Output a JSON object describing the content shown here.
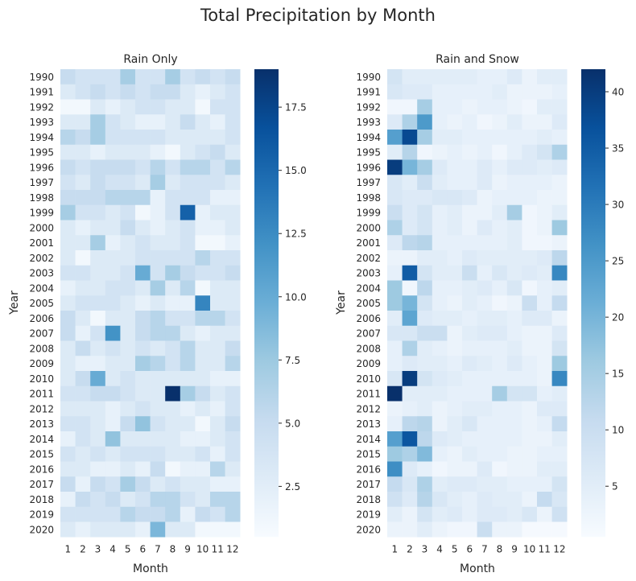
{
  "title": "Total Precipitation by Month",
  "chart_data": [
    {
      "type": "heatmap",
      "title": "Rain Only",
      "xlabel": "Month",
      "ylabel": "Year",
      "x": [
        "1",
        "2",
        "3",
        "4",
        "5",
        "6",
        "7",
        "8",
        "9",
        "10",
        "11",
        "12"
      ],
      "y": [
        "1990",
        "1991",
        "1992",
        "1993",
        "1994",
        "1995",
        "1996",
        "1997",
        "1998",
        "1999",
        "2000",
        "2001",
        "2002",
        "2003",
        "2004",
        "2005",
        "2006",
        "2007",
        "2008",
        "2009",
        "2010",
        "2011",
        "2012",
        "2013",
        "2014",
        "2015",
        "2016",
        "2017",
        "2018",
        "2019",
        "2020"
      ],
      "colorbar_ticks": [
        2.5,
        5.0,
        7.5,
        10.0,
        12.5,
        15.0,
        17.5
      ],
      "colorbar_tick_labels": [
        "2.5",
        "5.0",
        "7.5",
        "10.0",
        "12.5",
        "15.0",
        "17.5"
      ],
      "vmin": 0.5,
      "vmax": 19.0,
      "colormap": "Blues",
      "values": [
        [
          5,
          4,
          4,
          4,
          7,
          4,
          4,
          7,
          4,
          5,
          4,
          5
        ],
        [
          3,
          4,
          5,
          4,
          5,
          4,
          5,
          5,
          3,
          2,
          3,
          4
        ],
        [
          1,
          1,
          3,
          2,
          3,
          4,
          4,
          3,
          3,
          1,
          4,
          4
        ],
        [
          3,
          3,
          7,
          4,
          3,
          2,
          2,
          3,
          5,
          3,
          2,
          4
        ],
        [
          6,
          5,
          7,
          4,
          4,
          4,
          4,
          3,
          3,
          3,
          3,
          4
        ],
        [
          3,
          3,
          2,
          3,
          3,
          3,
          2,
          1,
          3,
          4,
          5,
          3
        ],
        [
          5,
          4,
          5,
          5,
          5,
          4,
          6,
          4,
          6,
          6,
          4,
          6
        ],
        [
          4,
          3,
          5,
          4,
          4,
          3,
          7,
          3,
          4,
          4,
          4,
          3
        ],
        [
          5,
          5,
          5,
          6,
          6,
          6,
          2,
          4,
          4,
          4,
          2,
          2
        ],
        [
          7,
          4,
          4,
          3,
          4,
          1,
          2,
          4,
          15.5,
          2,
          3,
          3
        ],
        [
          3,
          2,
          3,
          3,
          5,
          3,
          2,
          3,
          4,
          2,
          2,
          3
        ],
        [
          3,
          3,
          7,
          2,
          3,
          4,
          3,
          3,
          4,
          1,
          1,
          2
        ],
        [
          3,
          1,
          3,
          3,
          3,
          4,
          4,
          4,
          4,
          6,
          4,
          4
        ],
        [
          4,
          4,
          3,
          3,
          4,
          10,
          4,
          7,
          5,
          4,
          4,
          5
        ],
        [
          2,
          3,
          3,
          4,
          4,
          3,
          7,
          3,
          6,
          1,
          3,
          3
        ],
        [
          3,
          4,
          4,
          4,
          3,
          2,
          3,
          2,
          2,
          13,
          3,
          3
        ],
        [
          5,
          3,
          1,
          3,
          3,
          5,
          6,
          4,
          4,
          6,
          6,
          4
        ],
        [
          5,
          2,
          4,
          12,
          3,
          5,
          6,
          6,
          3,
          2,
          3,
          3
        ],
        [
          3,
          5,
          3,
          4,
          3,
          4,
          3,
          4,
          6,
          3,
          3,
          5
        ],
        [
          3,
          2,
          2,
          3,
          3,
          7,
          6,
          4,
          6,
          3,
          3,
          6
        ],
        [
          3,
          5,
          10,
          3,
          4,
          3,
          3,
          3,
          3,
          3,
          2,
          2
        ],
        [
          4,
          4,
          5,
          5,
          4,
          3,
          3,
          19,
          7,
          5,
          3,
          4
        ],
        [
          3,
          3,
          3,
          2,
          3,
          4,
          3,
          3,
          2,
          3,
          2,
          4
        ],
        [
          4,
          4,
          3,
          2,
          5,
          8,
          4,
          3,
          3,
          1,
          3,
          5
        ],
        [
          2,
          4,
          3,
          8,
          3,
          3,
          3,
          3,
          2,
          2,
          3,
          4
        ],
        [
          4,
          3,
          4,
          3,
          4,
          4,
          4,
          3,
          3,
          4,
          2,
          4
        ],
        [
          3,
          3,
          2,
          2,
          3,
          2,
          5,
          1,
          2,
          2,
          6,
          3
        ],
        [
          5,
          2,
          5,
          4,
          7,
          5,
          3,
          4,
          3,
          3,
          2,
          2
        ],
        [
          2,
          5,
          4,
          5,
          3,
          4,
          6,
          6,
          4,
          3,
          6,
          6
        ],
        [
          4,
          4,
          4,
          4,
          6,
          5,
          5,
          6,
          2,
          5,
          4,
          6
        ],
        [
          3,
          2,
          3,
          3,
          3,
          2,
          9,
          3,
          3,
          1,
          1,
          1
        ]
      ]
    },
    {
      "type": "heatmap",
      "title": "Rain and Snow",
      "xlabel": "Month",
      "ylabel": "Year",
      "x": [
        "1",
        "2",
        "3",
        "4",
        "5",
        "6",
        "7",
        "8",
        "9",
        "10",
        "11",
        "12"
      ],
      "y": [
        "1990",
        "1991",
        "1992",
        "1993",
        "1994",
        "1995",
        "1996",
        "1997",
        "1998",
        "1999",
        "2000",
        "2001",
        "2002",
        "2003",
        "2004",
        "2005",
        "2006",
        "2007",
        "2008",
        "2009",
        "2010",
        "2011",
        "2012",
        "2013",
        "2014",
        "2015",
        "2016",
        "2017",
        "2018",
        "2019",
        "2020"
      ],
      "colorbar_ticks": [
        5,
        10,
        15,
        20,
        25,
        30,
        35,
        40
      ],
      "colorbar_tick_labels": [
        "5",
        "10",
        "15",
        "20",
        "25",
        "30",
        "35",
        "40"
      ],
      "vmin": 0.5,
      "vmax": 42.0,
      "colormap": "Blues",
      "values": [
        [
          8,
          5,
          5,
          5,
          5,
          5,
          4,
          4,
          6,
          3,
          5,
          5
        ],
        [
          7,
          6,
          6,
          4,
          4,
          4,
          4,
          5,
          3,
          3,
          3,
          4
        ],
        [
          2,
          2,
          15,
          4,
          4,
          3,
          4,
          4,
          3,
          2,
          5,
          5
        ],
        [
          6,
          14,
          25,
          4,
          3,
          4,
          2,
          3,
          5,
          3,
          3,
          6
        ],
        [
          24,
          38,
          15,
          5,
          5,
          4,
          4,
          4,
          4,
          4,
          5,
          4
        ],
        [
          5,
          13,
          2,
          3,
          4,
          3,
          4,
          2,
          4,
          6,
          8,
          14
        ],
        [
          40,
          20,
          15,
          6,
          4,
          4,
          6,
          4,
          6,
          6,
          5,
          6
        ],
        [
          7,
          5,
          10,
          5,
          4,
          4,
          6,
          3,
          4,
          4,
          4,
          3
        ],
        [
          7,
          6,
          6,
          7,
          7,
          6,
          3,
          4,
          4,
          4,
          3,
          3
        ],
        [
          10,
          6,
          8,
          4,
          5,
          3,
          3,
          5,
          15,
          2,
          3,
          5
        ],
        [
          14,
          6,
          8,
          4,
          5,
          3,
          6,
          4,
          5,
          2,
          3,
          16
        ],
        [
          6,
          12,
          13,
          4,
          4,
          4,
          4,
          4,
          5,
          2,
          2,
          3
        ],
        [
          3,
          3,
          5,
          5,
          4,
          6,
          5,
          5,
          5,
          5,
          6,
          12
        ],
        [
          4,
          35,
          8,
          5,
          5,
          10,
          4,
          7,
          5,
          6,
          5,
          28
        ],
        [
          16,
          2,
          12,
          4,
          4,
          5,
          6,
          4,
          7,
          2,
          4,
          5
        ],
        [
          16,
          20,
          8,
          4,
          3,
          5,
          4,
          2,
          3,
          10,
          4,
          11
        ],
        [
          5,
          23,
          6,
          5,
          5,
          4,
          5,
          5,
          4,
          6,
          6,
          3
        ],
        [
          7,
          7,
          10,
          10,
          3,
          5,
          6,
          6,
          4,
          3,
          3,
          6
        ],
        [
          4,
          14,
          5,
          4,
          3,
          4,
          4,
          4,
          5,
          3,
          3,
          8
        ],
        [
          4,
          6,
          5,
          5,
          4,
          6,
          5,
          4,
          6,
          4,
          3,
          16
        ],
        [
          7,
          40,
          8,
          6,
          5,
          4,
          4,
          4,
          4,
          4,
          3,
          28
        ],
        [
          42,
          5,
          5,
          5,
          4,
          4,
          4,
          15,
          8,
          8,
          4,
          5
        ],
        [
          3,
          4,
          5,
          3,
          4,
          5,
          5,
          4,
          4,
          3,
          6,
          6
        ],
        [
          4,
          12,
          13,
          3,
          5,
          7,
          4,
          4,
          4,
          3,
          4,
          11
        ],
        [
          24,
          36,
          12,
          6,
          5,
          4,
          4,
          4,
          4,
          3,
          3,
          5
        ],
        [
          16,
          14,
          19,
          4,
          3,
          5,
          4,
          4,
          3,
          3,
          4,
          4
        ],
        [
          27,
          6,
          4,
          2,
          3,
          3,
          6,
          2,
          3,
          3,
          5,
          5
        ],
        [
          11,
          7,
          14,
          5,
          6,
          6,
          5,
          5,
          4,
          4,
          4,
          8
        ],
        [
          9,
          6,
          13,
          7,
          5,
          4,
          6,
          5,
          5,
          3,
          11,
          7
        ],
        [
          5,
          3,
          8,
          5,
          6,
          4,
          6,
          6,
          5,
          7,
          3,
          9
        ],
        [
          3,
          3,
          5,
          3,
          2,
          2,
          10,
          3,
          3,
          1,
          1,
          1
        ]
      ]
    }
  ]
}
